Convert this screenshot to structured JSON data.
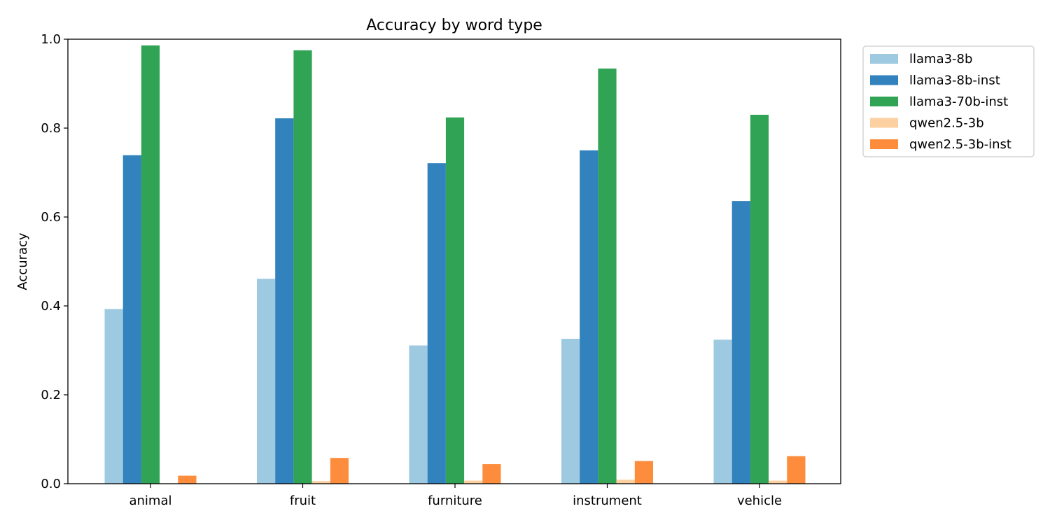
{
  "chart_data": {
    "type": "bar",
    "title": "Accuracy by word type",
    "xlabel": "",
    "ylabel": "Accuracy",
    "ylim": [
      0,
      1.0
    ],
    "yticks": [
      "0.0",
      "0.2",
      "0.4",
      "0.6",
      "0.8",
      "1.0"
    ],
    "categories": [
      "animal",
      "fruit",
      "furniture",
      "instrument",
      "vehicle"
    ],
    "legend_position": "outside-top-right",
    "grid": false,
    "series": [
      {
        "name": "llama3-8b",
        "color": "#9ecae1",
        "values": [
          0.393,
          0.461,
          0.311,
          0.326,
          0.324
        ]
      },
      {
        "name": "llama3-8b-inst",
        "color": "#3182bd",
        "values": [
          0.739,
          0.822,
          0.721,
          0.75,
          0.636
        ]
      },
      {
        "name": "llama3-70b-inst",
        "color": "#31a354",
        "values": [
          0.986,
          0.975,
          0.824,
          0.934,
          0.83
        ]
      },
      {
        "name": "qwen2.5-3b",
        "color": "#fdd0a2",
        "values": [
          0.001,
          0.006,
          0.007,
          0.009,
          0.007
        ]
      },
      {
        "name": "qwen2.5-3b-inst",
        "color": "#fd8d3c",
        "values": [
          0.018,
          0.058,
          0.044,
          0.051,
          0.062
        ]
      }
    ]
  }
}
